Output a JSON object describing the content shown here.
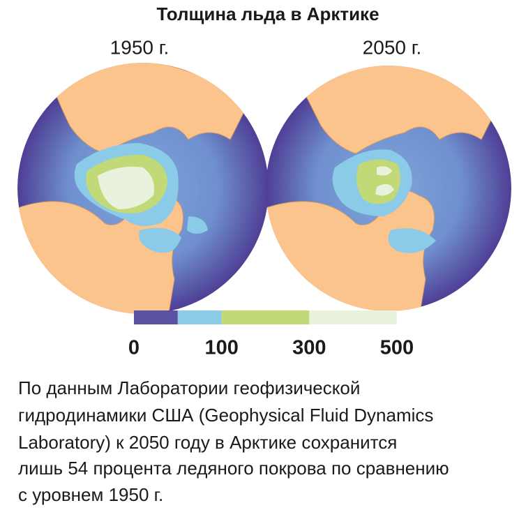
{
  "title": "Толщина льда в Арктике",
  "maps": [
    {
      "label": "1950 г."
    },
    {
      "label": "2050 г."
    }
  ],
  "legend": {
    "colors": [
      "#5b52a3",
      "#8ccbe8",
      "#c1d977",
      "#e9f2dc"
    ],
    "ticks": [
      0,
      100,
      300,
      500
    ]
  },
  "caption": [
    "По данным Лаборатории геофизической",
    "гидродинамики США (Geophysical Fluid Dynamics",
    "Laboratory) к 2050 году в Арктике сохранится",
    "лишь 54 процента ледяного покрова по сравнению",
    "с уровнем 1950 г."
  ]
}
